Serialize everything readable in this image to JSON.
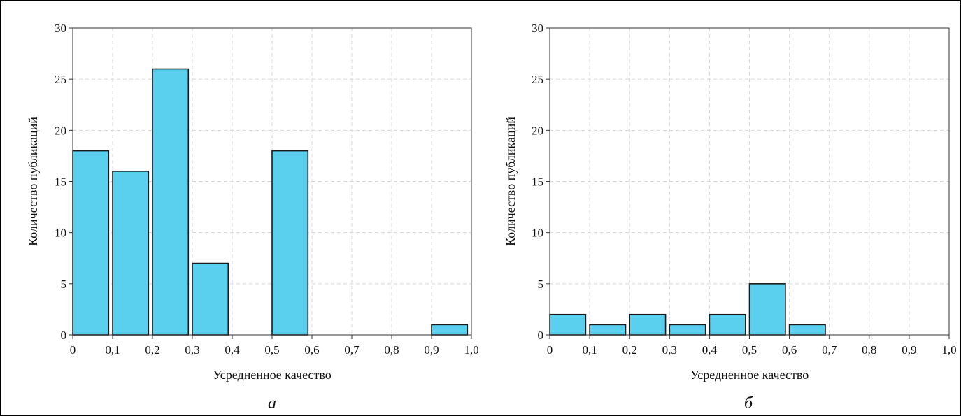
{
  "colors": {
    "bar_fill": "#5bcfee",
    "bar_edge": "#1a1a1a"
  },
  "chart_data": [
    {
      "type": "bar",
      "panel_label": "а",
      "xlabel": "Усредненное качество",
      "ylabel": "Количество публикаций",
      "xlim": [
        0,
        1.0
      ],
      "ylim": [
        0,
        30
      ],
      "x_ticks": [
        0,
        0.1,
        0.2,
        0.3,
        0.4,
        0.5,
        0.6,
        0.7,
        0.8,
        0.9,
        1.0
      ],
      "x_tick_labels": [
        "0",
        "0,1",
        "0,2",
        "0,3",
        "0,4",
        "0,5",
        "0,6",
        "0,7",
        "0,8",
        "0,9",
        "1,0"
      ],
      "y_ticks": [
        0,
        5,
        10,
        15,
        20,
        25,
        30
      ],
      "y_tick_labels": [
        "0",
        "5",
        "10",
        "15",
        "20",
        "25",
        "30"
      ],
      "grid": true,
      "bars": [
        {
          "x0": 0.0,
          "x1": 0.09,
          "value": 18
        },
        {
          "x0": 0.1,
          "x1": 0.19,
          "value": 16
        },
        {
          "x0": 0.2,
          "x1": 0.29,
          "value": 26
        },
        {
          "x0": 0.3,
          "x1": 0.39,
          "value": 7
        },
        {
          "x0": 0.5,
          "x1": 0.59,
          "value": 18
        },
        {
          "x0": 0.9,
          "x1": 0.99,
          "value": 1
        }
      ]
    },
    {
      "type": "bar",
      "panel_label": "б",
      "xlabel": "Усредненное качество",
      "ylabel": "Количество публикаций",
      "xlim": [
        0,
        1.0
      ],
      "ylim": [
        0,
        30
      ],
      "x_ticks": [
        0,
        0.1,
        0.2,
        0.3,
        0.4,
        0.5,
        0.6,
        0.7,
        0.8,
        0.9,
        1.0
      ],
      "x_tick_labels": [
        "0",
        "0,1",
        "0,2",
        "0,3",
        "0,4",
        "0,5",
        "0,6",
        "0,7",
        "0,8",
        "0,9",
        "1,0"
      ],
      "y_ticks": [
        0,
        5,
        10,
        15,
        20,
        25,
        30
      ],
      "y_tick_labels": [
        "0",
        "5",
        "10",
        "15",
        "20",
        "25",
        "30"
      ],
      "grid": true,
      "bars": [
        {
          "x0": 0.0,
          "x1": 0.09,
          "value": 2
        },
        {
          "x0": 0.1,
          "x1": 0.19,
          "value": 1
        },
        {
          "x0": 0.2,
          "x1": 0.29,
          "value": 2
        },
        {
          "x0": 0.3,
          "x1": 0.39,
          "value": 1
        },
        {
          "x0": 0.4,
          "x1": 0.49,
          "value": 2
        },
        {
          "x0": 0.5,
          "x1": 0.59,
          "value": 5
        },
        {
          "x0": 0.6,
          "x1": 0.69,
          "value": 1
        }
      ]
    }
  ]
}
